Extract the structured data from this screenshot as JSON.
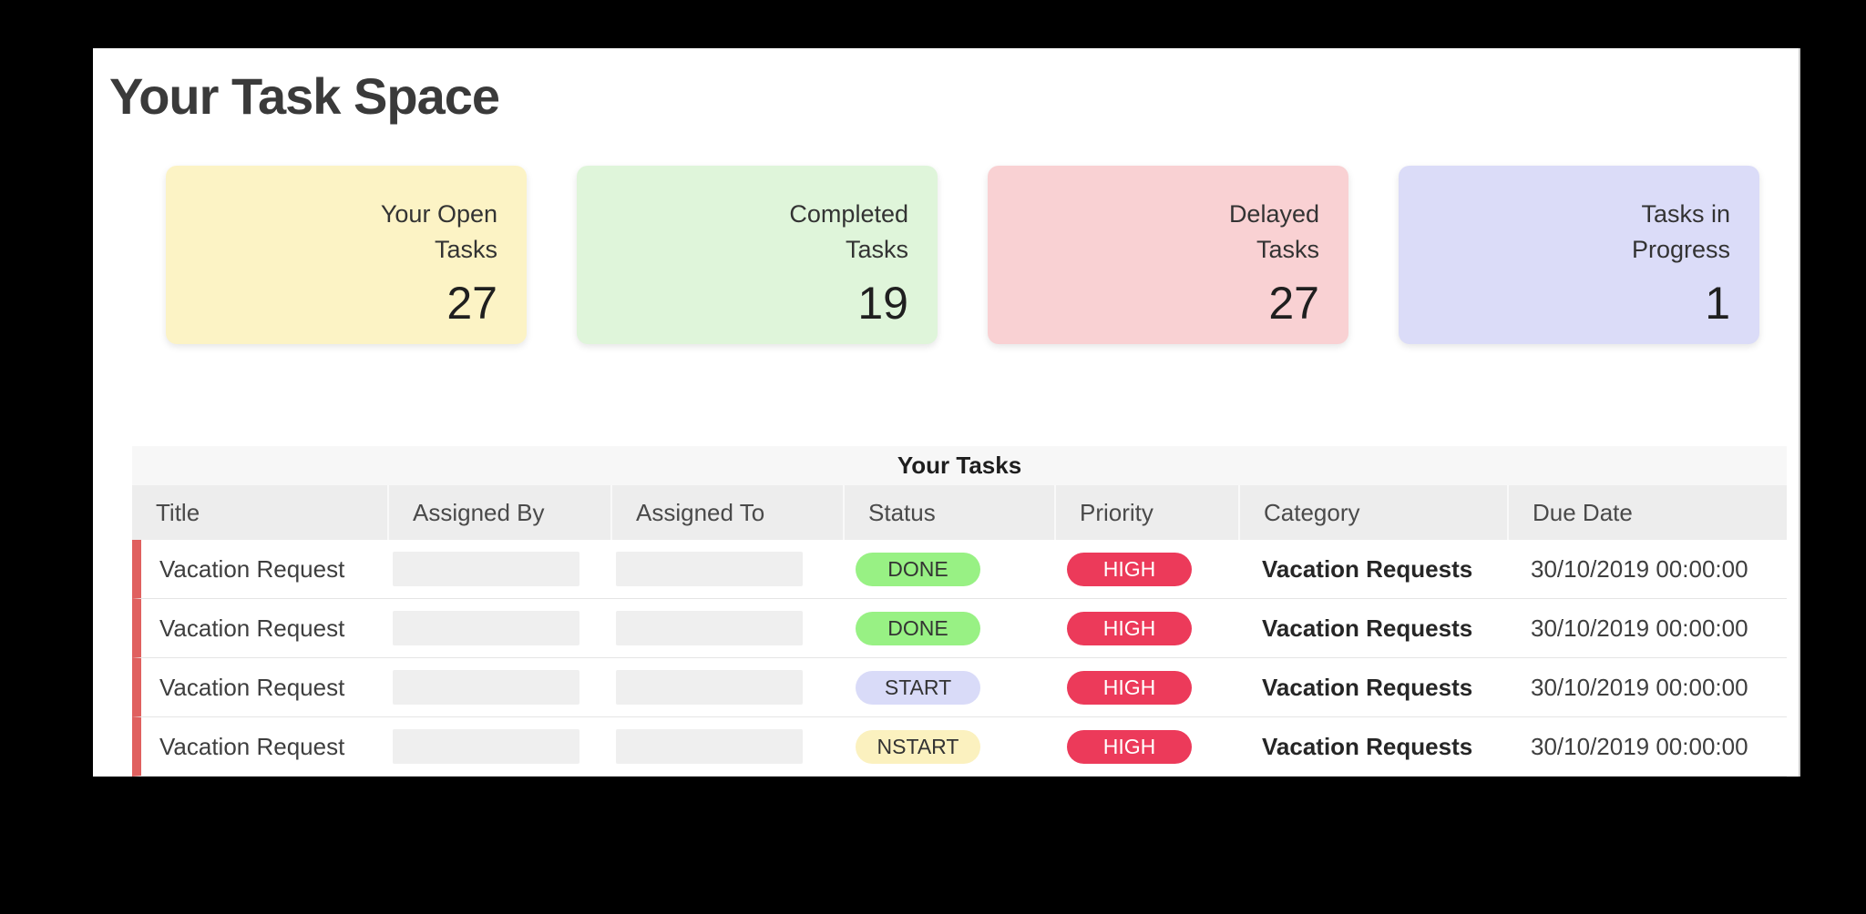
{
  "page": {
    "title": "Your Task Space"
  },
  "summary_cards": [
    {
      "label": "Your Open Tasks",
      "value": "27",
      "bg": "#fcf3c5"
    },
    {
      "label": "Completed Tasks",
      "value": "19",
      "bg": "#dff5da"
    },
    {
      "label": "Delayed Tasks",
      "value": "27",
      "bg": "#f9d1d3"
    },
    {
      "label": "Tasks in Progress",
      "value": "1",
      "bg": "#dbdcf8"
    }
  ],
  "task_table": {
    "caption": "Your Tasks",
    "columns": [
      "Title",
      "Assigned By",
      "Assigned To",
      "Status",
      "Priority",
      "Category",
      "Due Date"
    ],
    "rows": [
      {
        "title": "Vacation Request",
        "assigned_by": "",
        "assigned_to": "",
        "status": "DONE",
        "status_bg": "#98f184",
        "status_fg": "#333333",
        "priority": "HIGH",
        "priority_bg": "#ec3a5a",
        "priority_fg": "#ffffff",
        "category": "Vacation Requests",
        "due_date": "30/10/2019 00:00:00"
      },
      {
        "title": "Vacation Request",
        "assigned_by": "",
        "assigned_to": "",
        "status": "DONE",
        "status_bg": "#98f184",
        "status_fg": "#333333",
        "priority": "HIGH",
        "priority_bg": "#ec3a5a",
        "priority_fg": "#ffffff",
        "category": "Vacation Requests",
        "due_date": "30/10/2019 00:00:00"
      },
      {
        "title": "Vacation Request",
        "assigned_by": "",
        "assigned_to": "",
        "status": "START",
        "status_bg": "#d9dbf8",
        "status_fg": "#333333",
        "priority": "HIGH",
        "priority_bg": "#ec3a5a",
        "priority_fg": "#ffffff",
        "category": "Vacation Requests",
        "due_date": "30/10/2019 00:00:00"
      },
      {
        "title": "Vacation Request",
        "assigned_by": "",
        "assigned_to": "",
        "status": "NSTART",
        "status_bg": "#fbf1bf",
        "status_fg": "#333333",
        "priority": "HIGH",
        "priority_bg": "#ec3a5a",
        "priority_fg": "#ffffff",
        "category": "Vacation Requests",
        "due_date": "30/10/2019 00:00:00"
      }
    ]
  },
  "colors": {
    "caption_bg": "#f7f7f7",
    "header_bg": "#ededed",
    "row_accent": "#e0605f",
    "page_bg": "#ffffff",
    "frame_bg": "#000000"
  }
}
